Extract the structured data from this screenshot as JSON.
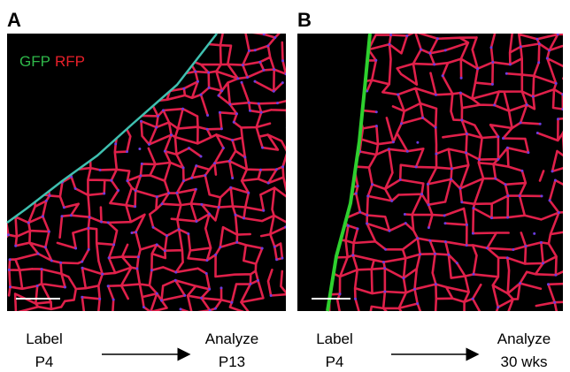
{
  "panels": [
    {
      "letter": "A",
      "channel_labels": [
        "GFP",
        "RFP"
      ],
      "timeline": {
        "start_label": "Label",
        "start_time": "P4",
        "end_label": "Analyze",
        "end_time": "P13"
      }
    },
    {
      "letter": "B",
      "timeline": {
        "start_label": "Label",
        "start_time": "P4",
        "end_label": "Analyze",
        "end_time": "30 wks"
      }
    }
  ]
}
